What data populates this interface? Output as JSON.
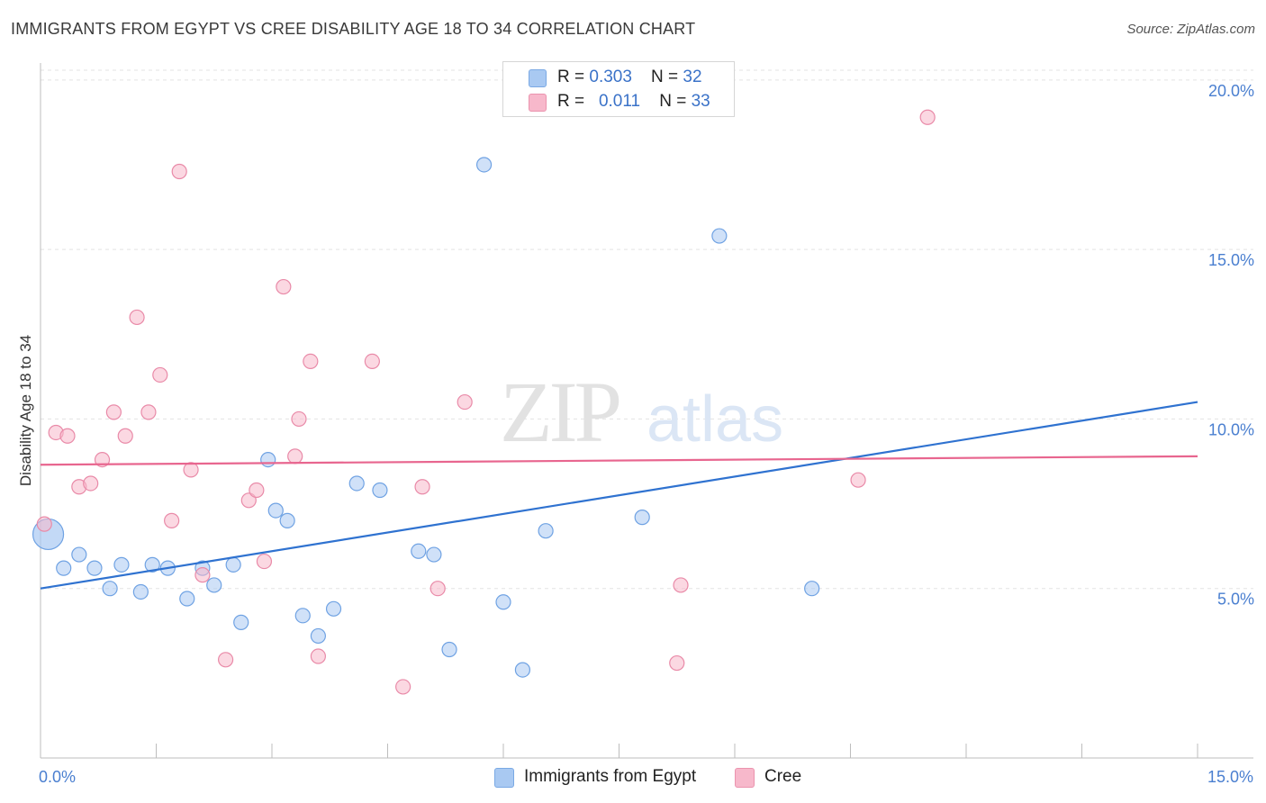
{
  "header": {
    "title": "IMMIGRANTS FROM EGYPT VS CREE DISABILITY AGE 18 TO 34 CORRELATION CHART",
    "source": "Source: ZipAtlas.com"
  },
  "watermark": {
    "zip": "ZIP",
    "atlas": "atlas"
  },
  "legend": {
    "r_label": "R = ",
    "n_label": "N = ",
    "items": [
      {
        "r": "0.303",
        "n": "32",
        "color": "#a9c9f2"
      },
      {
        "r": "0.011",
        "n": "33",
        "color": "#f7b8cb"
      }
    ]
  },
  "bottom_legend": [
    {
      "label": "Immigrants from Egypt",
      "color": "#a9c9f2"
    },
    {
      "label": "Cree",
      "color": "#f7b8cb"
    }
  ],
  "chart_data": {
    "type": "scatter",
    "title": "IMMIGRANTS FROM EGYPT VS CREE DISABILITY AGE 18 TO 34 CORRELATION CHART",
    "xlabel": "",
    "ylabel": "Disability Age 18 to 34",
    "xlim": [
      0,
      15
    ],
    "ylim": [
      0,
      20.5
    ],
    "x_tick_labels": [
      "0.0%",
      "15.0%"
    ],
    "y_ticks": [
      5,
      10,
      15,
      20
    ],
    "y_tick_labels": [
      "5.0%",
      "10.0%",
      "15.0%",
      "20.0%"
    ],
    "grid": true,
    "legend_position": "top-center",
    "series": [
      {
        "name": "Immigrants from Egypt",
        "color": "#a9c9f2",
        "stroke": "#6fa2e3",
        "trend_color": "#2f72d0",
        "trend": {
          "x": [
            0,
            15
          ],
          "y": [
            5.0,
            10.5
          ]
        },
        "points": [
          {
            "x": 0.1,
            "y": 6.6,
            "big": true
          },
          {
            "x": 0.3,
            "y": 5.6
          },
          {
            "x": 0.5,
            "y": 6.0
          },
          {
            "x": 0.7,
            "y": 5.6
          },
          {
            "x": 0.9,
            "y": 5.0
          },
          {
            "x": 1.05,
            "y": 5.7
          },
          {
            "x": 1.3,
            "y": 4.9
          },
          {
            "x": 1.45,
            "y": 5.7
          },
          {
            "x": 1.65,
            "y": 5.6
          },
          {
            "x": 1.9,
            "y": 4.7
          },
          {
            "x": 2.1,
            "y": 5.6
          },
          {
            "x": 2.25,
            "y": 5.1
          },
          {
            "x": 2.5,
            "y": 5.7
          },
          {
            "x": 2.6,
            "y": 4.0
          },
          {
            "x": 2.95,
            "y": 8.8
          },
          {
            "x": 3.05,
            "y": 7.3
          },
          {
            "x": 3.2,
            "y": 7.0
          },
          {
            "x": 3.4,
            "y": 4.2
          },
          {
            "x": 3.6,
            "y": 3.6
          },
          {
            "x": 3.8,
            "y": 4.4
          },
          {
            "x": 4.1,
            "y": 8.1
          },
          {
            "x": 4.4,
            "y": 7.9
          },
          {
            "x": 4.9,
            "y": 6.1
          },
          {
            "x": 5.1,
            "y": 6.0
          },
          {
            "x": 5.3,
            "y": 3.2
          },
          {
            "x": 5.75,
            "y": 17.5
          },
          {
            "x": 6.0,
            "y": 4.6
          },
          {
            "x": 6.25,
            "y": 2.6
          },
          {
            "x": 6.55,
            "y": 6.7
          },
          {
            "x": 7.8,
            "y": 7.1
          },
          {
            "x": 8.8,
            "y": 15.4
          },
          {
            "x": 10.0,
            "y": 5.0
          }
        ]
      },
      {
        "name": "Cree",
        "color": "#f7b8cb",
        "stroke": "#e98aa8",
        "trend_color": "#e8668f",
        "trend": {
          "x": [
            0,
            15
          ],
          "y": [
            8.65,
            8.9
          ]
        },
        "points": [
          {
            "x": 0.05,
            "y": 6.9
          },
          {
            "x": 0.2,
            "y": 9.6
          },
          {
            "x": 0.35,
            "y": 9.5
          },
          {
            "x": 0.5,
            "y": 8.0
          },
          {
            "x": 0.65,
            "y": 8.1
          },
          {
            "x": 0.8,
            "y": 8.8
          },
          {
            "x": 0.95,
            "y": 10.2
          },
          {
            "x": 1.1,
            "y": 9.5
          },
          {
            "x": 1.25,
            "y": 13.0
          },
          {
            "x": 1.4,
            "y": 10.2
          },
          {
            "x": 1.55,
            "y": 11.3
          },
          {
            "x": 1.7,
            "y": 7.0
          },
          {
            "x": 1.8,
            "y": 17.3
          },
          {
            "x": 1.95,
            "y": 8.5
          },
          {
            "x": 2.1,
            "y": 5.4
          },
          {
            "x": 2.4,
            "y": 2.9
          },
          {
            "x": 2.7,
            "y": 7.6
          },
          {
            "x": 2.8,
            "y": 7.9
          },
          {
            "x": 2.9,
            "y": 5.8
          },
          {
            "x": 3.15,
            "y": 13.9
          },
          {
            "x": 3.3,
            "y": 8.9
          },
          {
            "x": 3.35,
            "y": 10.0
          },
          {
            "x": 3.5,
            "y": 11.7
          },
          {
            "x": 3.6,
            "y": 3.0
          },
          {
            "x": 4.3,
            "y": 11.7
          },
          {
            "x": 4.7,
            "y": 2.1
          },
          {
            "x": 4.95,
            "y": 8.0
          },
          {
            "x": 5.15,
            "y": 5.0
          },
          {
            "x": 5.5,
            "y": 10.5
          },
          {
            "x": 8.25,
            "y": 2.8
          },
          {
            "x": 8.3,
            "y": 5.1
          },
          {
            "x": 10.6,
            "y": 8.2
          },
          {
            "x": 11.5,
            "y": 18.9
          }
        ]
      }
    ]
  }
}
